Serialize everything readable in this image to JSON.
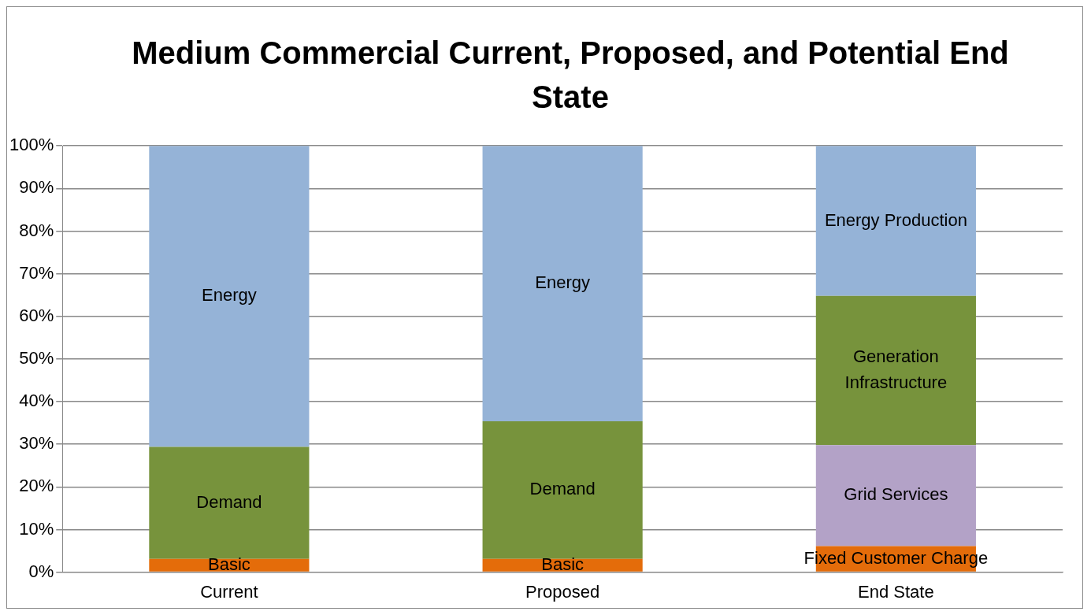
{
  "chart_data": {
    "type": "bar",
    "title": "Medium Commercial Current, Proposed, and Potential End State",
    "categories": [
      "Current",
      "Proposed",
      "End State"
    ],
    "stacked": true,
    "series": [
      {
        "name": "Basic",
        "color": "#e46c0a",
        "values": [
          3.1,
          3.1,
          null
        ]
      },
      {
        "name": "Fixed Customer Charge",
        "color": "#e46c0a",
        "values": [
          null,
          null,
          6.1
        ]
      },
      {
        "name": "Demand",
        "color": "#77933c",
        "values": [
          26.3,
          32.3,
          null
        ]
      },
      {
        "name": "Grid Services",
        "color": "#b3a2c7",
        "values": [
          null,
          null,
          23.7
        ]
      },
      {
        "name": "Generation Infrastructure",
        "color": "#77933c",
        "values": [
          null,
          null,
          35.0
        ]
      },
      {
        "name": "Energy",
        "color": "#95b3d7",
        "values": [
          70.6,
          64.6,
          null
        ]
      },
      {
        "name": "Energy Production",
        "color": "#95b3d7",
        "values": [
          null,
          null,
          35.2
        ]
      }
    ],
    "ylim": [
      0,
      100
    ],
    "yticks": [
      {
        "value": 0,
        "label": "0%"
      },
      {
        "value": 10,
        "label": "10%"
      },
      {
        "value": 20,
        "label": "20%"
      },
      {
        "value": 30,
        "label": "30%"
      },
      {
        "value": 40,
        "label": "40%"
      },
      {
        "value": 50,
        "label": "50%"
      },
      {
        "value": 60,
        "label": "60%"
      },
      {
        "value": 70,
        "label": "70%"
      },
      {
        "value": 80,
        "label": "80%"
      },
      {
        "value": 90,
        "label": "90%"
      },
      {
        "value": 100,
        "label": "100%"
      }
    ],
    "grid": "y",
    "legend": false
  }
}
